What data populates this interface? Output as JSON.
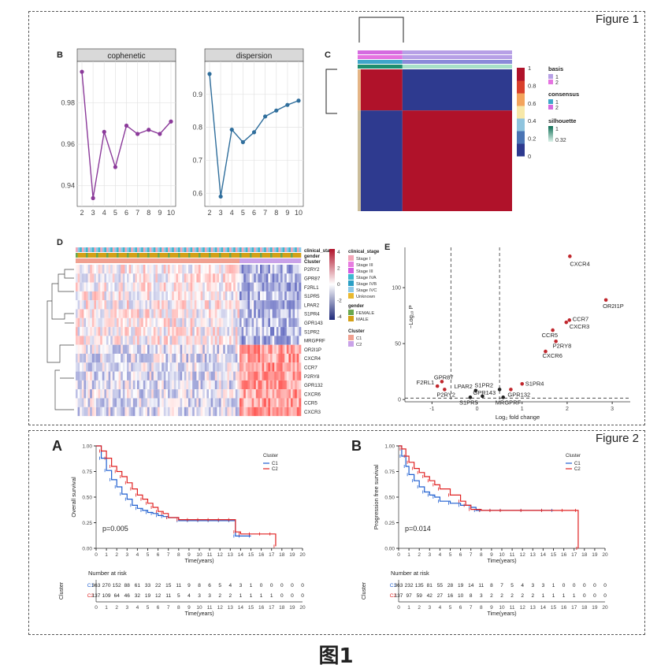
{
  "figure1": {
    "label": "Figure 1",
    "panelB": {
      "label": "B"
    },
    "panelC": {
      "label": "C"
    },
    "panelD": {
      "label": "D"
    },
    "panelE": {
      "label": "E"
    }
  },
  "figure2": {
    "label": "Figure 2",
    "panelA": {
      "label": "A"
    },
    "panelB": {
      "label": "B"
    }
  },
  "caption": "图1",
  "chart_data": [
    {
      "id": "cophenetic",
      "type": "line",
      "title": "cophenetic",
      "x": [
        2,
        3,
        4,
        5,
        6,
        7,
        8,
        9,
        10
      ],
      "y": [
        0.995,
        0.934,
        0.966,
        0.949,
        0.969,
        0.965,
        0.967,
        0.965,
        0.971
      ],
      "ylim": [
        0.93,
        1.0
      ],
      "yticks": [
        "0.94",
        "0.96",
        "0.98"
      ],
      "ytick_values": [
        0.94,
        0.96,
        0.98
      ],
      "xticks": [
        "2",
        "3",
        "4",
        "5",
        "6",
        "7",
        "8",
        "9",
        "10"
      ],
      "color": "#8B3A9A"
    },
    {
      "id": "dispersion",
      "type": "line",
      "title": "dispersion",
      "x": [
        2,
        3,
        4,
        5,
        6,
        7,
        8,
        9,
        10
      ],
      "y": [
        0.962,
        0.59,
        0.793,
        0.755,
        0.785,
        0.833,
        0.851,
        0.868,
        0.881
      ],
      "ylim": [
        0.56,
        1.0
      ],
      "yticks": [
        "0.6",
        "0.7",
        "0.8",
        "0.9"
      ],
      "ytick_values": [
        0.6,
        0.7,
        0.8,
        0.9
      ],
      "xticks": [
        "2",
        "3",
        "4",
        "5",
        "6",
        "7",
        "8",
        "9",
        "10"
      ],
      "color": "#2F6E9C"
    },
    {
      "id": "consensus-heatmap",
      "type": "heatmap",
      "colorbar_ticks": [
        "0",
        "0.2",
        "0.4",
        "0.6",
        "0.8",
        "1"
      ],
      "legend": {
        "basis": {
          "title": "basis",
          "items": [
            "1",
            "2"
          ]
        },
        "consensus": {
          "title": "consensus",
          "items": [
            "1",
            "2"
          ]
        },
        "silhouette": {
          "title": "silhouette",
          "items": [
            "1",
            "0.32"
          ]
        }
      },
      "colors": {
        "high": "#B0122A",
        "low": "#2E3A8F",
        "mid": "#F7E8A8"
      }
    },
    {
      "id": "expression-heatmap",
      "type": "heatmap",
      "annotation_rows": [
        "clinical_stage",
        "gender",
        "Cluster"
      ],
      "genes": [
        "P2RY2",
        "GPR87",
        "F2RL1",
        "S1PR5",
        "LPAR2",
        "S1PR4",
        "GPR143",
        "S1PR2",
        "MRGPRF",
        "OR2I1P",
        "CXCR4",
        "CCR7",
        "P2RY8",
        "GPR132",
        "CXCR6",
        "CCR5",
        "CXCR3"
      ],
      "colorbar_ticks": [
        "4",
        "2",
        "0",
        "-2",
        "-4"
      ],
      "legend": {
        "clinical_stage": {
          "title": "clinical_stage",
          "items": [
            "Stage I",
            "Stage III",
            "Stage III",
            "Stage IVA",
            "Stage IVB",
            "Stage IVC",
            "Unknown"
          ],
          "colors": [
            "#F4A7B9",
            "#E87DE0",
            "#D55CE0",
            "#3FB8D0",
            "#2A9FC5",
            "#8DC9E8",
            "#E8B830"
          ]
        },
        "gender": {
          "title": "gender",
          "items": [
            "FEMALE",
            "MALE"
          ],
          "colors": [
            "#6AA84F",
            "#D4A017"
          ]
        },
        "cluster": {
          "title": "Cluster",
          "items": [
            "C1",
            "C2"
          ],
          "colors": [
            "#F0A090",
            "#C9A2E8"
          ]
        }
      }
    },
    {
      "id": "volcano",
      "type": "scatter",
      "xlabel": "Log₂ fold change",
      "ylabel": "−Log₁₀ P",
      "xlim": [
        -1.6,
        3.4
      ],
      "ylim": [
        -2,
        136
      ],
      "xticks": [
        "-1",
        "0",
        "1",
        "2",
        "3"
      ],
      "xtick_values": [
        -1,
        0,
        1,
        2,
        3
      ],
      "yticks": [
        "0",
        "50",
        "100"
      ],
      "ytick_values": [
        0,
        50,
        100
      ],
      "vlines": [
        -0.58,
        0.5
      ],
      "hline": 1.3,
      "points": [
        {
          "label": "CXCR4",
          "x": 2.06,
          "y": 128,
          "sig": true
        },
        {
          "label": "OR2I1P",
          "x": 2.86,
          "y": 89,
          "sig": true
        },
        {
          "label": "CCR7",
          "x": 2.05,
          "y": 71,
          "sig": true
        },
        {
          "label": "CXCR3",
          "x": 1.98,
          "y": 69,
          "sig": true
        },
        {
          "label": "CCR5",
          "x": 1.68,
          "y": 62,
          "sig": true
        },
        {
          "label": "P2RY8",
          "x": 1.75,
          "y": 52,
          "sig": true
        },
        {
          "label": "CXCR6",
          "x": 1.52,
          "y": 43,
          "sig": true
        },
        {
          "label": "S1PR4",
          "x": 1.0,
          "y": 14,
          "sig": true
        },
        {
          "label": "S1PR2",
          "x": 0.5,
          "y": 9,
          "sig": false
        },
        {
          "label": "GPR132",
          "x": 0.75,
          "y": 9,
          "sig": true
        },
        {
          "label": "F2RL1",
          "x": -0.88,
          "y": 12,
          "sig": true
        },
        {
          "label": "GPR87",
          "x": -0.78,
          "y": 16,
          "sig": true
        },
        {
          "label": "P2RY2",
          "x": -0.72,
          "y": 9,
          "sig": true
        },
        {
          "label": "LPAR2",
          "x": -0.03,
          "y": 8,
          "sig": false
        },
        {
          "label": "GPR143",
          "x": 0.12,
          "y": 3,
          "sig": false
        },
        {
          "label": "S1PR5",
          "x": -0.15,
          "y": 2,
          "sig": false
        },
        {
          "label": "MRGPRF",
          "x": 0.58,
          "y": 2,
          "sig": false
        }
      ]
    },
    {
      "id": "overall-survival",
      "type": "line",
      "ylabel": "Overall survival",
      "xlabel": "Time(years)",
      "pvalue": "p=0.005",
      "legend_title": "Cluster",
      "xticks": [
        "0",
        "1",
        "2",
        "3",
        "4",
        "5",
        "6",
        "7",
        "8",
        "9",
        "10",
        "11",
        "12",
        "13",
        "14",
        "15",
        "16",
        "17",
        "18",
        "19",
        "20"
      ],
      "yticks": [
        "0.00",
        "0.25",
        "0.50",
        "0.75",
        "1.00"
      ],
      "xlim": [
        0,
        20
      ],
      "ylim": [
        0,
        1
      ],
      "series": [
        {
          "name": "C1",
          "color": "#1F5FD0",
          "x": [
            0,
            0.5,
            1,
            1.5,
            2,
            2.5,
            3,
            3.5,
            4,
            4.5,
            5,
            5.5,
            6,
            6.5,
            7,
            8,
            9,
            10,
            11,
            12,
            13,
            13.5,
            14,
            15
          ],
          "y": [
            1,
            0.88,
            0.76,
            0.67,
            0.6,
            0.53,
            0.48,
            0.42,
            0.39,
            0.37,
            0.35,
            0.34,
            0.32,
            0.31,
            0.3,
            0.27,
            0.27,
            0.27,
            0.27,
            0.27,
            0.27,
            0.12,
            0.12,
            0.12
          ]
        },
        {
          "name": "C2",
          "color": "#E02020",
          "x": [
            0,
            0.5,
            1,
            1.5,
            2,
            2.5,
            3,
            3.5,
            4,
            4.5,
            5,
            5.5,
            6,
            6.5,
            7,
            8,
            9,
            10,
            11,
            12,
            13,
            13.5,
            14,
            15,
            16,
            17,
            17.4
          ],
          "y": [
            1,
            0.95,
            0.88,
            0.8,
            0.75,
            0.7,
            0.64,
            0.58,
            0.52,
            0.48,
            0.44,
            0.4,
            0.36,
            0.34,
            0.3,
            0.28,
            0.28,
            0.28,
            0.28,
            0.28,
            0.28,
            0.16,
            0.14,
            0.14,
            0.14,
            0.14,
            0.02
          ]
        }
      ],
      "risk_table": {
        "title": "Number at risk",
        "row_label": "Cluster",
        "rows": [
          {
            "name": "C1",
            "color": "#1F5FD0",
            "values": [
              "363",
              "270",
              "152",
              "88",
              "61",
              "33",
              "22",
              "15",
              "11",
              "9",
              "8",
              "6",
              "5",
              "4",
              "3",
              "1",
              "0",
              "0",
              "0",
              "0",
              "0"
            ]
          },
          {
            "name": "C2",
            "color": "#E02020",
            "values": [
              "137",
              "109",
              "64",
              "46",
              "32",
              "19",
              "12",
              "11",
              "5",
              "4",
              "3",
              "3",
              "2",
              "2",
              "1",
              "1",
              "1",
              "1",
              "0",
              "0",
              "0"
            ]
          }
        ]
      }
    },
    {
      "id": "progression-free-survival",
      "type": "line",
      "ylabel": "Progression free survival",
      "xlabel": "Time(years)",
      "pvalue": "p=0.014",
      "legend_title": "Cluster",
      "xticks": [
        "0",
        "1",
        "2",
        "3",
        "4",
        "5",
        "6",
        "7",
        "8",
        "9",
        "10",
        "11",
        "12",
        "13",
        "14",
        "15",
        "16",
        "17",
        "18",
        "19",
        "20"
      ],
      "yticks": [
        "0.00",
        "0.25",
        "0.50",
        "0.75",
        "1.00"
      ],
      "xlim": [
        0,
        20
      ],
      "ylim": [
        0,
        1
      ],
      "series": [
        {
          "name": "C1",
          "color": "#1F5FD0",
          "x": [
            0,
            0.3,
            0.7,
            1,
            1.5,
            2,
            2.5,
            3,
            3.5,
            4,
            5,
            6,
            7,
            7.5,
            8,
            9,
            10,
            12,
            14,
            15
          ],
          "y": [
            1,
            0.9,
            0.8,
            0.72,
            0.66,
            0.6,
            0.55,
            0.52,
            0.5,
            0.46,
            0.44,
            0.42,
            0.4,
            0.37,
            0.37,
            0.37,
            0.37,
            0.37,
            0.37,
            0.37
          ]
        },
        {
          "name": "C2",
          "color": "#E02020",
          "x": [
            0,
            0.3,
            0.7,
            1,
            1.5,
            2,
            2.5,
            3,
            3.5,
            4,
            5,
            6,
            6.5,
            7,
            8,
            9,
            10,
            12,
            14,
            16,
            17.3,
            17.4
          ],
          "y": [
            1,
            0.97,
            0.9,
            0.84,
            0.78,
            0.74,
            0.7,
            0.66,
            0.62,
            0.58,
            0.52,
            0.46,
            0.42,
            0.38,
            0.37,
            0.37,
            0.37,
            0.37,
            0.37,
            0.37,
            0.37,
            0.0
          ]
        }
      ],
      "risk_table": {
        "title": "Number at risk",
        "row_label": "Cluster",
        "rows": [
          {
            "name": "C1",
            "color": "#1F5FD0",
            "values": [
              "363",
              "232",
              "135",
              "81",
              "55",
              "28",
              "19",
              "14",
              "11",
              "8",
              "7",
              "5",
              "4",
              "3",
              "3",
              "1",
              "0",
              "0",
              "0",
              "0",
              "0"
            ]
          },
          {
            "name": "C2",
            "color": "#E02020",
            "values": [
              "137",
              "97",
              "59",
              "42",
              "27",
              "16",
              "10",
              "8",
              "3",
              "2",
              "2",
              "2",
              "2",
              "2",
              "1",
              "1",
              "1",
              "1",
              "0",
              "0",
              "0"
            ]
          }
        ]
      }
    }
  ]
}
